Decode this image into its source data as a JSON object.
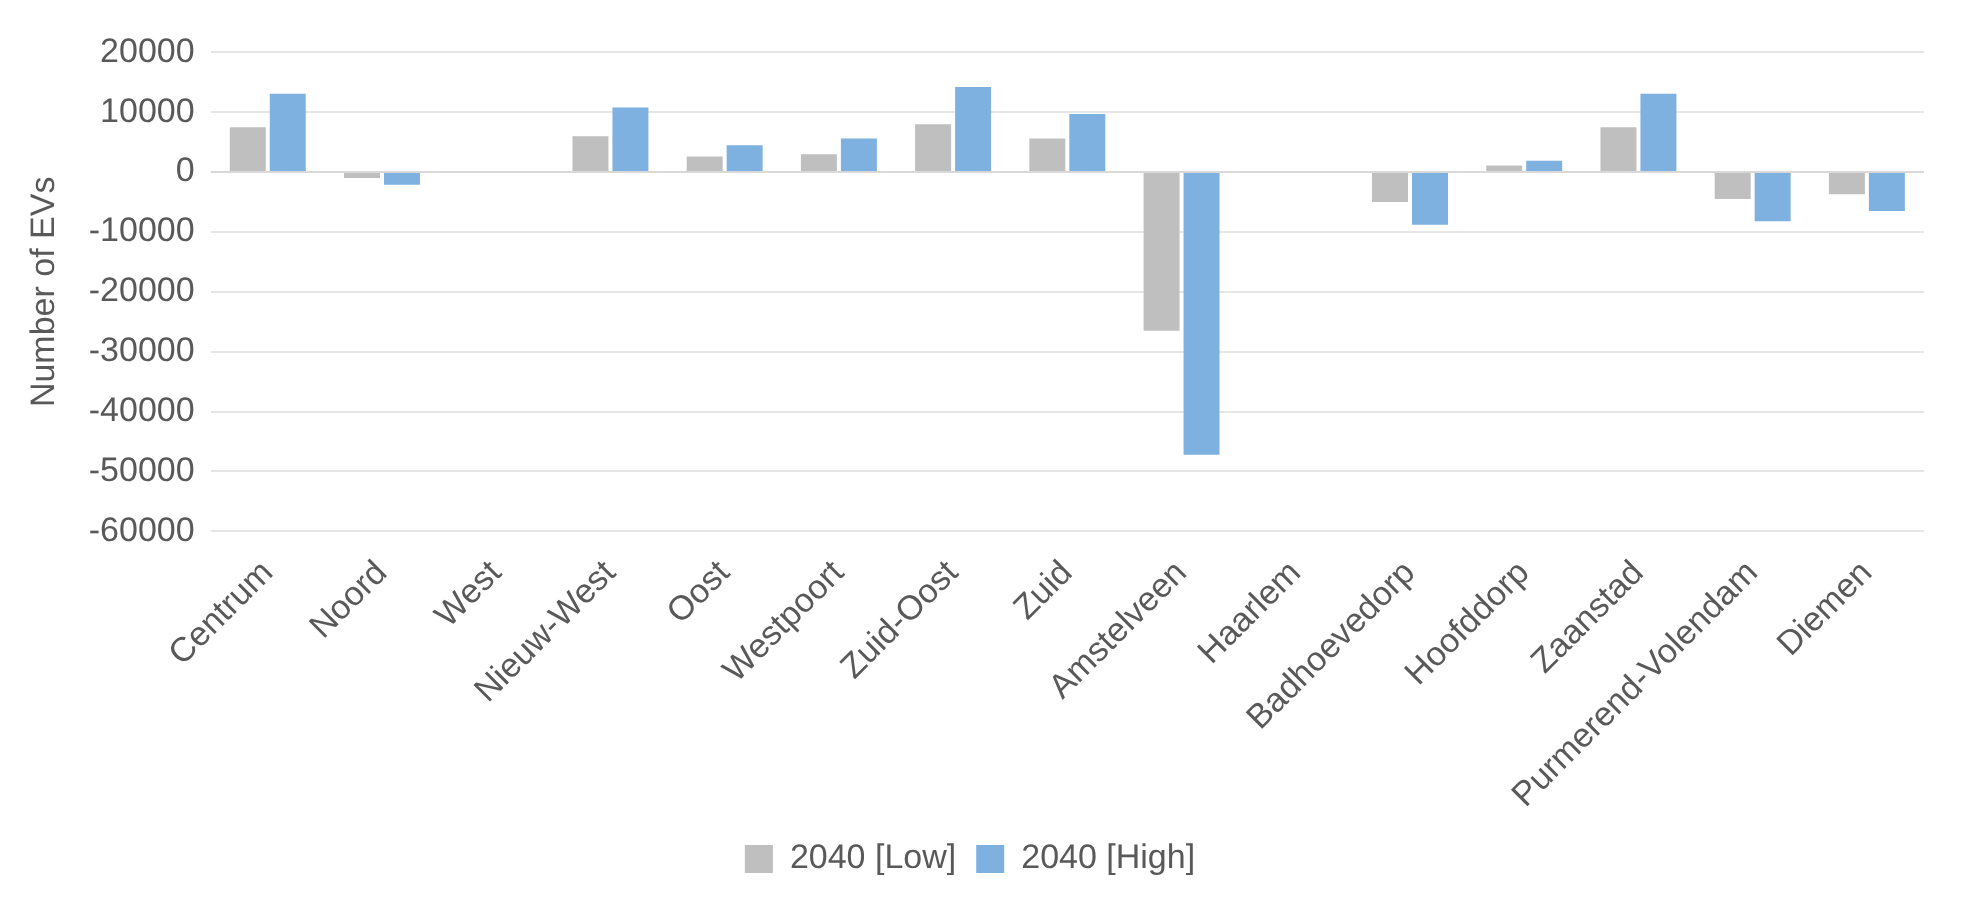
{
  "chart_data": {
    "type": "bar",
    "ylabel": "Number of EVs",
    "categories": [
      "Centrum",
      "Noord",
      "West",
      "Nieuw-West",
      "Oost",
      "Westpoort",
      "Zuid-Oost",
      "Zuid",
      "Amstelveen",
      "Haarlem",
      "Badhoevedorp",
      "Hoofddorp",
      "Zaanstad",
      "Purmerend-Volendam",
      "Diemen"
    ],
    "series": [
      {
        "name": "2040 [Low]",
        "color": "#bfbfbf",
        "values": [
          7500,
          -1000,
          0,
          6000,
          2600,
          3000,
          8000,
          5600,
          -26500,
          0,
          -5000,
          1100,
          7500,
          -4500,
          -3700
        ]
      },
      {
        "name": "2040 [High]",
        "color": "#7eb0e0",
        "values": [
          13100,
          -2100,
          0,
          10800,
          4500,
          5600,
          14200,
          9700,
          -47200,
          0,
          -8800,
          1900,
          13100,
          -8200,
          -6500
        ]
      }
    ],
    "ylim": [
      -60000,
      20000
    ],
    "yticks": [
      -60000,
      -50000,
      -40000,
      -30000,
      -20000,
      -10000,
      0,
      10000,
      20000
    ],
    "grid": "y",
    "legend": "bottom"
  }
}
